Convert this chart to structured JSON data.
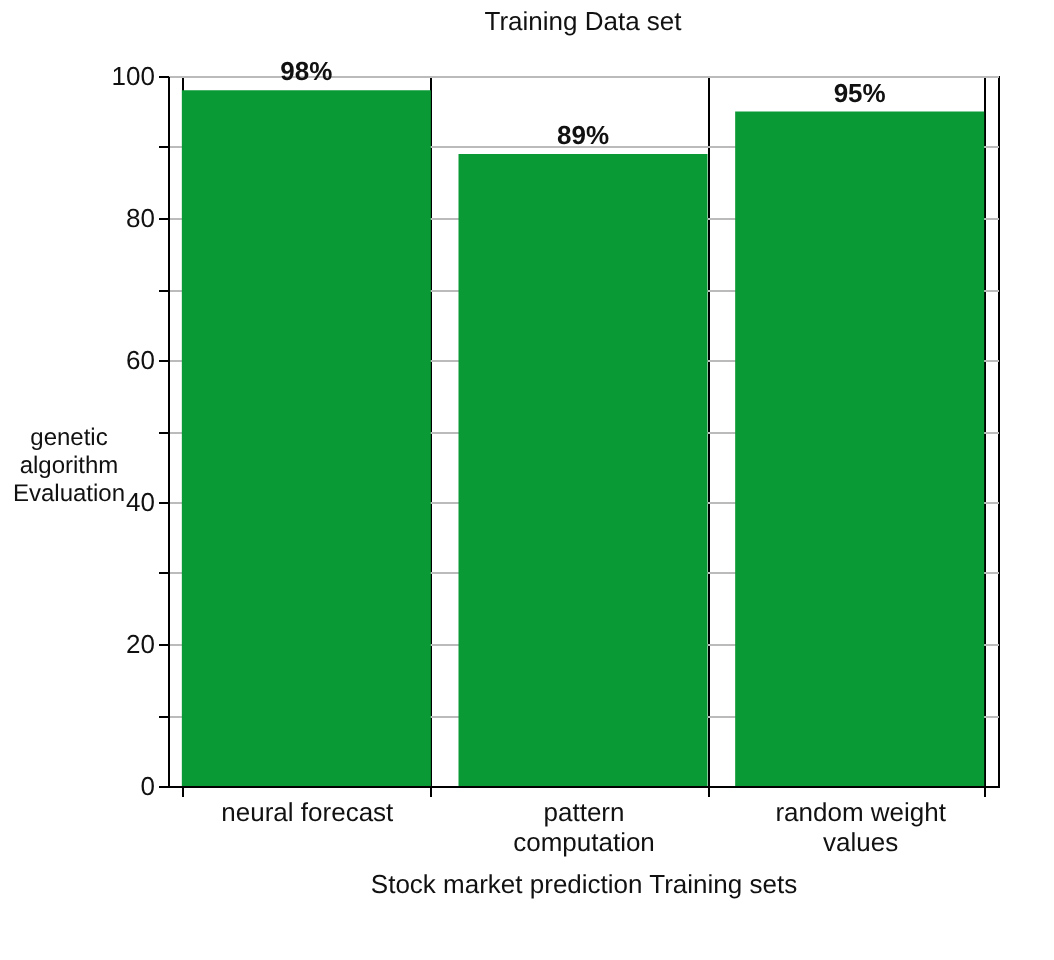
{
  "chart_data": {
    "type": "bar",
    "title": "Training Data set",
    "xlabel": "Stock market prediction Training sets",
    "ylabel": "genetic algorithm Evaluation",
    "categories": [
      "neural forecast",
      "pattern computation",
      "random weight values"
    ],
    "values": [
      98,
      89,
      95
    ],
    "value_labels": [
      "98%",
      "89%",
      "95%"
    ],
    "color": "#0a9a35",
    "ylim": [
      0,
      100
    ],
    "yticks": [
      0,
      {
        "value": 10,
        "label": null
      },
      20,
      {
        "value": 30,
        "label": null
      },
      40,
      {
        "value": 50,
        "label": null
      },
      60,
      {
        "value": 70,
        "label": null
      },
      80,
      {
        "value": 90,
        "label": null
      },
      100
    ],
    "grid": true
  }
}
